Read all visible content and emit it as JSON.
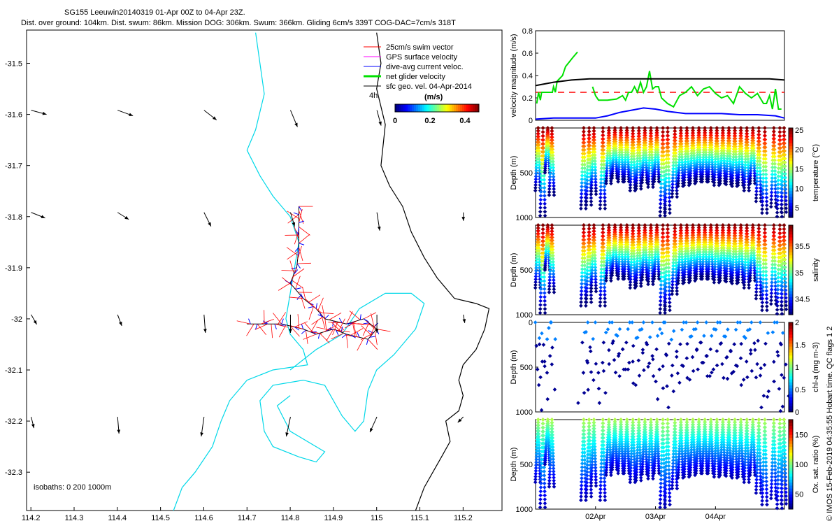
{
  "header": {
    "title_line1": "SG155 Leeuwin20140319 01-Apr 00Z to 04-Apr 23Z.",
    "title_line2": "Dist. over ground: 104km. Dist. swum: 86km. Mission DOG: 306km. Swum: 366km. Gliding 6cm/s 339T COG-DAC=7cm/s 318T"
  },
  "side_label": "© IMOS 15-Feb-2019 04:35:55 Hobart time. QC flags 1  2",
  "colors": {
    "coast": "#000000",
    "isobath": "#00d8e8",
    "swim": "#ff0000",
    "gps": "#ff00ff",
    "dac": "#0000ff",
    "net": "#00e000",
    "geo": "#000000",
    "dac_mean": "#ff0000"
  },
  "chart_data": [
    {
      "type": "map",
      "name": "track-map",
      "x_ticks": [
        "114.2",
        "114.3",
        "114.4",
        "114.5",
        "114.6",
        "114.7",
        "114.8",
        "114.9",
        "115",
        "115.1",
        "115.2"
      ],
      "y_ticks": [
        "-31.5",
        "-31.6",
        "-31.7",
        "-31.8",
        "-31.9",
        "-32",
        "-32.1",
        "-32.2",
        "-32.3"
      ],
      "xlim": [
        114.19,
        115.29
      ],
      "ylim": [
        -32.375,
        -31.435
      ],
      "legend": {
        "items": [
          {
            "label": "25cm/s swim vector",
            "color_key": "swim",
            "kind": "thin"
          },
          {
            "label": "GPS surface velocity",
            "color_key": "gps",
            "kind": "thin"
          },
          {
            "label": "dive-avg current veloc.",
            "color_key": "dac",
            "kind": "thin"
          },
          {
            "label": "net glider velocity",
            "color_key": "net",
            "kind": "thick"
          },
          {
            "label": "sfc geo. vel. 04-Apr-2014",
            "color_key": "geo",
            "kind": "thin"
          }
        ],
        "scale_label": "4h"
      },
      "colorbar": {
        "label": "(m/s)",
        "ticks": [
          "0",
          "0.2",
          "0.4"
        ],
        "range": [
          0,
          0.48
        ]
      },
      "isobaths_label": "isobaths: 0   200  1000m",
      "coastline": [
        [
          115.0,
          -31.44
        ],
        [
          115.01,
          -31.5
        ],
        [
          115.0,
          -31.55
        ],
        [
          115.02,
          -31.62
        ],
        [
          115.01,
          -31.7
        ],
        [
          115.03,
          -31.74
        ],
        [
          115.06,
          -31.78
        ],
        [
          115.08,
          -31.83
        ],
        [
          115.11,
          -31.88
        ],
        [
          115.14,
          -31.92
        ],
        [
          115.18,
          -31.96
        ],
        [
          115.23,
          -31.97
        ],
        [
          115.26,
          -31.98
        ],
        [
          115.25,
          -32.02
        ],
        [
          115.23,
          -32.06
        ],
        [
          115.2,
          -32.09
        ],
        [
          115.19,
          -32.12
        ],
        [
          115.2,
          -32.15
        ],
        [
          115.19,
          -32.18
        ],
        [
          115.16,
          -32.2
        ],
        [
          115.17,
          -32.24
        ],
        [
          115.15,
          -32.27
        ],
        [
          115.13,
          -32.3
        ],
        [
          115.11,
          -32.33
        ],
        [
          115.09,
          -32.375
        ]
      ],
      "isobath_200_west": [
        [
          114.72,
          -31.44
        ],
        [
          114.73,
          -31.5
        ],
        [
          114.74,
          -31.56
        ],
        [
          114.72,
          -31.63
        ],
        [
          114.7,
          -31.67
        ],
        [
          114.73,
          -31.72
        ],
        [
          114.76,
          -31.76
        ],
        [
          114.8,
          -31.8
        ],
        [
          114.82,
          -31.85
        ],
        [
          114.81,
          -31.9
        ],
        [
          114.8,
          -31.95
        ],
        [
          114.79,
          -32.0
        ],
        [
          114.8,
          -32.03
        ],
        [
          114.83,
          -32.06
        ],
        [
          114.84,
          -32.09
        ],
        [
          114.76,
          -32.1
        ],
        [
          114.7,
          -32.12
        ],
        [
          114.66,
          -32.16
        ],
        [
          114.64,
          -32.2
        ],
        [
          114.62,
          -32.25
        ],
        [
          114.58,
          -32.3
        ],
        [
          114.55,
          -32.33
        ],
        [
          114.53,
          -32.375
        ]
      ],
      "isobath_200_east": [
        [
          114.8,
          -32.1
        ],
        [
          114.86,
          -32.06
        ],
        [
          114.92,
          -32.03
        ],
        [
          114.96,
          -31.98
        ],
        [
          115.02,
          -31.95
        ],
        [
          115.08,
          -31.95
        ],
        [
          115.11,
          -31.97
        ],
        [
          115.09,
          -32.02
        ],
        [
          115.04,
          -32.07
        ],
        [
          115.0,
          -32.1
        ],
        [
          114.98,
          -32.14
        ],
        [
          114.97,
          -32.2
        ],
        [
          114.95,
          -32.22
        ],
        [
          114.92,
          -32.19
        ],
        [
          114.88,
          -32.13
        ],
        [
          114.83,
          -32.12
        ],
        [
          114.76,
          -32.13
        ],
        [
          114.73,
          -32.16
        ],
        [
          114.74,
          -32.22
        ],
        [
          114.76,
          -32.25
        ],
        [
          114.82,
          -32.27
        ],
        [
          114.86,
          -32.28
        ],
        [
          114.88,
          -32.26
        ],
        [
          114.8,
          -32.22
        ],
        [
          114.77,
          -32.17
        ],
        [
          114.8,
          -32.15
        ]
      ],
      "track": [
        [
          114.82,
          -31.78
        ],
        [
          114.82,
          -31.82
        ],
        [
          114.82,
          -31.86
        ],
        [
          114.815,
          -31.9
        ],
        [
          114.8,
          -31.93
        ],
        [
          114.83,
          -31.96
        ],
        [
          114.86,
          -31.98
        ],
        [
          114.88,
          -32.0
        ],
        [
          114.93,
          -32.01
        ],
        [
          114.97,
          -32.0
        ],
        [
          115.0,
          -32.02
        ],
        [
          114.98,
          -32.04
        ],
        [
          114.93,
          -32.03
        ],
        [
          114.9,
          -32.02
        ],
        [
          114.86,
          -32.03
        ],
        [
          114.83,
          -32.02
        ],
        [
          114.78,
          -32.01
        ],
        [
          114.74,
          -32.01
        ],
        [
          114.7,
          -32.01
        ]
      ]
    },
    {
      "type": "line",
      "name": "velocity-magnitude",
      "ylabel": "velocity magnitude (m/s)",
      "ylim": [
        0,
        0.8
      ],
      "yticks": [
        "0",
        "0.2",
        "0.4",
        "0.6",
        "0.8"
      ],
      "xlim": [
        0,
        4.15
      ],
      "series": [
        {
          "name": "net glider velocity",
          "color_key": "net",
          "x": [
            0.02,
            0.05,
            0.08,
            0.1,
            0.15,
            0.2,
            0.28,
            0.3,
            0.33,
            0.36,
            0.45,
            0.5,
            0.62,
            0.7
          ],
          "y": [
            0.15,
            0.25,
            0.18,
            0.25,
            0.25,
            0.25,
            0.25,
            0.3,
            0.25,
            0.35,
            0.4,
            0.48,
            0.56,
            0.61
          ]
        },
        {
          "name": "net glider velocity 2",
          "color_key": "net",
          "x": [
            0.95,
            1.0,
            1.05,
            1.2,
            1.35,
            1.45,
            1.5,
            1.55,
            1.6,
            1.65,
            1.7,
            1.75,
            1.8,
            1.85,
            1.9,
            1.95,
            2.0,
            2.05,
            2.1,
            2.2,
            2.3,
            2.4,
            2.5,
            2.6,
            2.7,
            2.8,
            2.9,
            3.0,
            3.1,
            3.2,
            3.3,
            3.4,
            3.5,
            3.6,
            3.7,
            3.8,
            3.85,
            3.9,
            3.95,
            4.0,
            4.05,
            4.1
          ],
          "y": [
            0.3,
            0.22,
            0.18,
            0.18,
            0.19,
            0.22,
            0.18,
            0.25,
            0.25,
            0.3,
            0.25,
            0.34,
            0.25,
            0.3,
            0.44,
            0.28,
            0.3,
            0.3,
            0.2,
            0.15,
            0.12,
            0.22,
            0.25,
            0.3,
            0.22,
            0.28,
            0.3,
            0.24,
            0.2,
            0.22,
            0.15,
            0.3,
            0.24,
            0.2,
            0.24,
            0.15,
            0.15,
            0.22,
            0.1,
            0.28,
            0.1,
            0.1
          ]
        },
        {
          "name": "dive-avg current",
          "color_key": "dac",
          "x": [
            0,
            0.3,
            0.6,
            1.0,
            1.2,
            1.4,
            1.6,
            1.8,
            2.0,
            2.2,
            2.5,
            2.8,
            3.1,
            3.4,
            3.7,
            4.0,
            4.15
          ],
          "y": [
            0.01,
            0.02,
            0.02,
            0.02,
            0.04,
            0.07,
            0.09,
            0.11,
            0.1,
            0.08,
            0.06,
            0.06,
            0.06,
            0.05,
            0.05,
            0.04,
            0.02
          ]
        },
        {
          "name": "black",
          "color_key": "geo",
          "x": [
            0,
            0.3,
            0.6,
            0.9,
            1.2,
            1.5,
            1.8,
            2.1,
            2.4,
            2.7,
            3.0,
            3.3,
            3.6,
            3.9,
            4.15
          ],
          "y": [
            0.31,
            0.34,
            0.36,
            0.37,
            0.37,
            0.37,
            0.37,
            0.37,
            0.37,
            0.37,
            0.37,
            0.37,
            0.37,
            0.37,
            0.36
          ]
        }
      ],
      "mean_line": {
        "y": 0.25
      }
    },
    {
      "type": "scatter",
      "name": "temperature-profile",
      "ylabel": "Depth (m)",
      "ylim": [
        1000,
        0
      ],
      "yticks": [
        "500",
        "1000"
      ],
      "cbar_label": "temperature (°C)",
      "cbar_ticks": [
        "5",
        "10",
        "15",
        "20",
        "25"
      ],
      "cbar_range": [
        2.5,
        25.5
      ],
      "palette": "jet",
      "dive_times": [
        0.02,
        0.1,
        0.18,
        0.25,
        0.78,
        0.87,
        0.95,
        1.1,
        1.2,
        1.3,
        1.4,
        1.5,
        1.6,
        1.7,
        1.8,
        1.9,
        2.0,
        2.1,
        2.18,
        2.3,
        2.4,
        2.5,
        2.6,
        2.7,
        2.8,
        2.9,
        3.0,
        3.1,
        3.2,
        3.3,
        3.4,
        3.5,
        3.6,
        3.7,
        3.8,
        3.95,
        4.05,
        4.12
      ],
      "dive_depths": [
        700,
        980,
        500,
        750,
        900,
        860,
        740,
        900,
        620,
        560,
        600,
        600,
        700,
        680,
        610,
        660,
        600,
        980,
        950,
        770,
        650,
        640,
        620,
        600,
        600,
        600,
        640,
        620,
        630,
        650,
        640,
        700,
        620,
        820,
        950,
        880,
        990,
        940
      ]
    },
    {
      "type": "scatter",
      "name": "salinity-profile",
      "ylabel": "Depth (m)",
      "ylim": [
        1000,
        0
      ],
      "yticks": [
        "500",
        "1000"
      ],
      "cbar_label": "salinity",
      "cbar_ticks": [
        "34.5",
        "35",
        "35.5"
      ],
      "cbar_range": [
        34.2,
        35.9
      ],
      "palette": "jet",
      "dive_times": [
        0.02,
        0.1,
        0.18,
        0.25,
        0.78,
        0.87,
        0.95,
        1.1,
        1.2,
        1.3,
        1.4,
        1.5,
        1.6,
        1.7,
        1.8,
        1.9,
        2.0,
        2.1,
        2.18,
        2.3,
        2.4,
        2.5,
        2.6,
        2.7,
        2.8,
        2.9,
        3.0,
        3.1,
        3.2,
        3.3,
        3.4,
        3.5,
        3.6,
        3.7,
        3.8,
        3.95,
        4.05,
        4.12
      ],
      "dive_depths": [
        700,
        980,
        500,
        750,
        900,
        860,
        740,
        900,
        620,
        560,
        600,
        600,
        700,
        680,
        610,
        660,
        600,
        980,
        950,
        770,
        650,
        640,
        620,
        600,
        600,
        600,
        640,
        620,
        630,
        650,
        640,
        700,
        620,
        820,
        950,
        880,
        990,
        940
      ]
    },
    {
      "type": "scatter",
      "name": "chla-profile",
      "ylabel": "Depth (m)",
      "ylim": [
        1000,
        0
      ],
      "yticks": [
        "0",
        "500",
        "1000"
      ],
      "cbar_label": "chl-a (mg m-3)",
      "cbar_ticks": [
        "0",
        "0.5",
        "1",
        "1.5",
        "2"
      ],
      "cbar_range": [
        0,
        2
      ],
      "palette": "jet",
      "dive_times": [
        0.02,
        0.1,
        0.18,
        0.25,
        0.78,
        0.87,
        0.95,
        1.1,
        1.2,
        1.3,
        1.4,
        1.5,
        1.6,
        1.7,
        1.8,
        1.9,
        2.0,
        2.1,
        2.18,
        2.3,
        2.4,
        2.5,
        2.6,
        2.7,
        2.8,
        2.9,
        3.0,
        3.1,
        3.2,
        3.3,
        3.4,
        3.5,
        3.6,
        3.7,
        3.8,
        3.95,
        4.05,
        4.12
      ],
      "dive_depths": [
        700,
        980,
        500,
        750,
        900,
        860,
        740,
        900,
        620,
        560,
        600,
        600,
        700,
        680,
        610,
        660,
        600,
        980,
        950,
        770,
        650,
        640,
        620,
        600,
        600,
        600,
        640,
        620,
        630,
        650,
        640,
        700,
        620,
        820,
        950,
        880,
        990,
        940
      ]
    },
    {
      "type": "scatter",
      "name": "oxygen-profile",
      "ylabel": "Depth (m)",
      "ylim": [
        1000,
        0
      ],
      "yticks": [
        "500",
        "1000"
      ],
      "cbar_label": "Ox. sat. ratio (%)",
      "cbar_ticks": [
        "50",
        "100",
        "150"
      ],
      "cbar_range": [
        25,
        175
      ],
      "palette": "jet",
      "x_ticks": [
        "02Apr",
        "03Apr",
        "04Apr"
      ],
      "x_tick_values": [
        1.0,
        2.0,
        3.0
      ],
      "dive_times": [
        0.02,
        0.1,
        0.18,
        0.25,
        0.78,
        0.87,
        0.95,
        1.1,
        1.2,
        1.3,
        1.4,
        1.5,
        1.6,
        1.7,
        1.8,
        1.9,
        2.0,
        2.1,
        2.18,
        2.3,
        2.4,
        2.5,
        2.6,
        2.7,
        2.8,
        2.9,
        3.0,
        3.1,
        3.2,
        3.3,
        3.4,
        3.5,
        3.6,
        3.7,
        3.8,
        3.95,
        4.05,
        4.12
      ],
      "dive_depths": [
        700,
        980,
        500,
        750,
        900,
        860,
        740,
        900,
        620,
        560,
        600,
        600,
        700,
        680,
        610,
        660,
        600,
        980,
        950,
        770,
        650,
        640,
        620,
        600,
        600,
        600,
        640,
        620,
        630,
        650,
        640,
        700,
        620,
        820,
        950,
        880,
        990,
        940
      ]
    }
  ]
}
